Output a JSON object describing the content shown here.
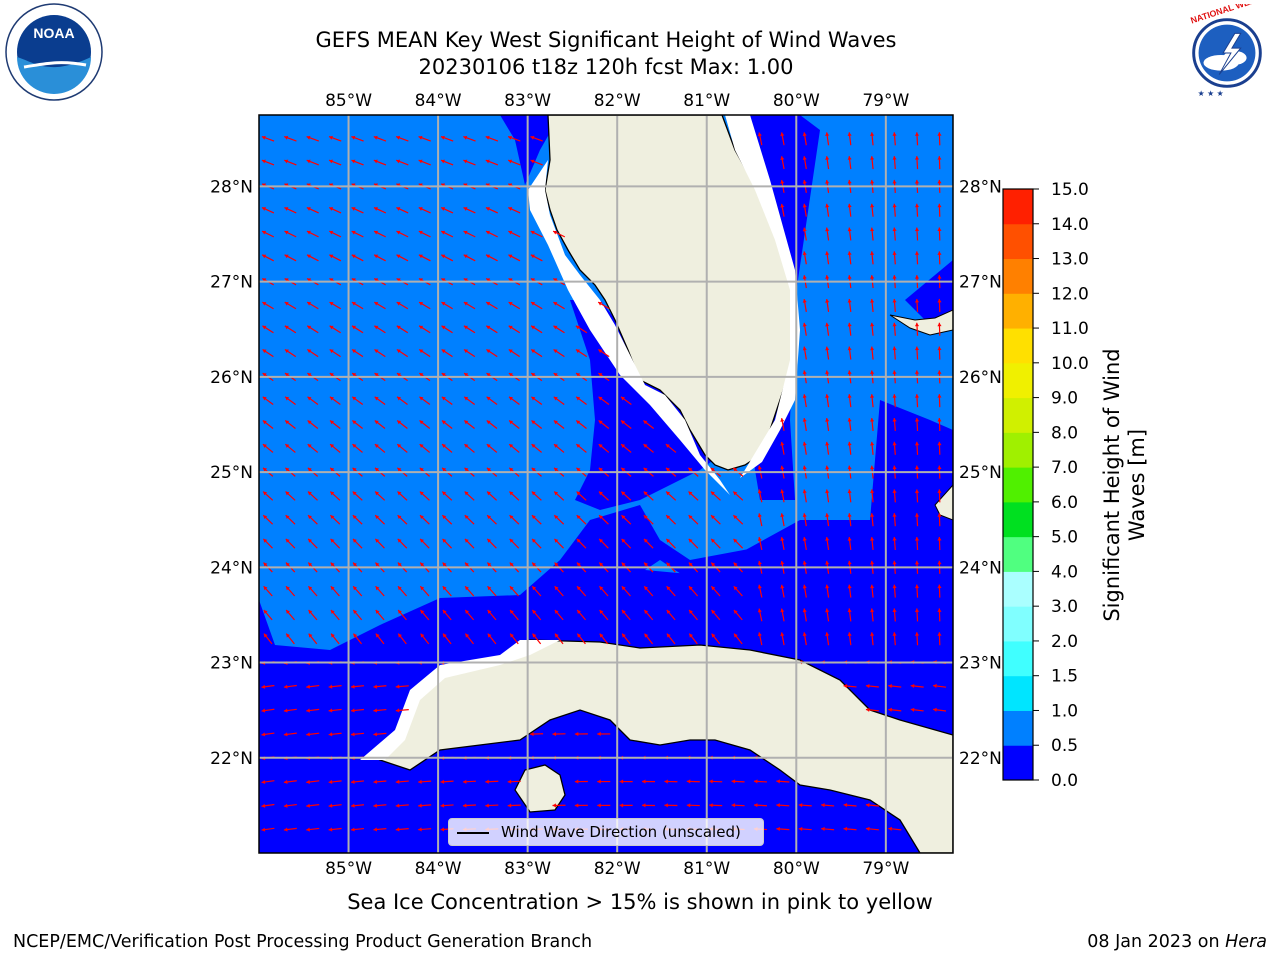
{
  "title": {
    "line1": "GEFS MEAN Key West Significant Height of Wind Waves",
    "line2": "20230106 t18z 120h fcst   Max: 1.00"
  },
  "map": {
    "projection": "PlateCarree",
    "lon_range": [
      -86.0,
      -78.25
    ],
    "lat_range": [
      21.0,
      28.75
    ],
    "lon_ticks": [
      {
        "value": -85,
        "label": "85°W"
      },
      {
        "value": -84,
        "label": "84°W"
      },
      {
        "value": -83,
        "label": "83°W"
      },
      {
        "value": -82,
        "label": "82°W"
      },
      {
        "value": -81,
        "label": "81°W"
      },
      {
        "value": -80,
        "label": "80°W"
      },
      {
        "value": -79,
        "label": "79°W"
      }
    ],
    "lat_ticks": [
      {
        "value": 22,
        "label": "22°N"
      },
      {
        "value": 23,
        "label": "23°N"
      },
      {
        "value": 24,
        "label": "24°N"
      },
      {
        "value": 25,
        "label": "25°N"
      },
      {
        "value": 26,
        "label": "26°N"
      },
      {
        "value": 27,
        "label": "27°N"
      },
      {
        "value": 28,
        "label": "28°N"
      }
    ],
    "ocean_colors": {
      "band_0_0_5": "#0000ff",
      "band_0_5_1_0": "#0080ff"
    },
    "land_color": "#efefdf",
    "arrow_color": "#ff0000",
    "grid_color": "#b0b0b0"
  },
  "colorbar": {
    "label": "Significant Height of Wind Waves [m]",
    "levels": [
      0.0,
      0.5,
      1.0,
      1.5,
      2.0,
      3.0,
      4.0,
      5.0,
      6.0,
      7.0,
      8.0,
      9.0,
      10.0,
      11.0,
      12.0,
      13.0,
      14.0,
      15.0
    ],
    "tick_labels": [
      "0.0",
      "0.5",
      "1.0",
      "1.5",
      "2.0",
      "3.0",
      "4.0",
      "5.0",
      "6.0",
      "7.0",
      "8.0",
      "9.0",
      "10.0",
      "11.0",
      "12.0",
      "13.0",
      "14.0",
      "15.0"
    ],
    "colors": [
      "#0000ff",
      "#0080ff",
      "#00e5ff",
      "#40ffff",
      "#80ffff",
      "#aaffff",
      "#50ff80",
      "#00e020",
      "#50f000",
      "#a0f000",
      "#d0f000",
      "#f0f000",
      "#ffe000",
      "#ffb000",
      "#ff8000",
      "#ff5000",
      "#ff2000"
    ]
  },
  "legend": {
    "wind_wave_direction": "Wind Wave Direction (unscaled)"
  },
  "seaice_note": "Sea Ice Concentration > 15% is shown in pink to yellow",
  "footer": {
    "left": "NCEP/EMC/Verification Post Processing Product Generation Branch",
    "right_prefix": "08 Jan 2023 on ",
    "right_italic": "Hera"
  },
  "logos": {
    "left": {
      "name": "NOAA",
      "text": "NOAA"
    },
    "right": {
      "name": "National Weather Service",
      "text": "NATIONAL WEATHER SERVICE"
    }
  }
}
